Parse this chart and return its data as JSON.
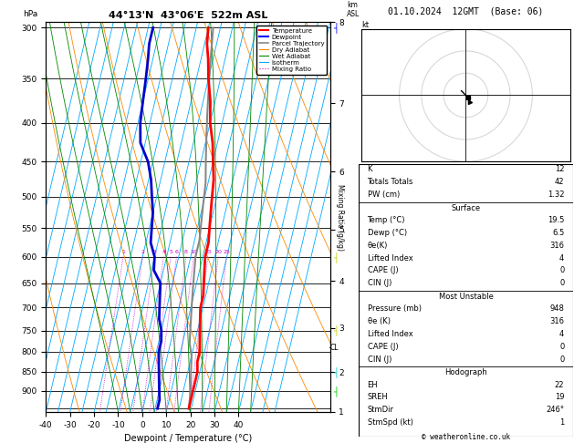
{
  "title_left": "44°13'N  43°06'E  522m ASL",
  "title_right": "01.10.2024  12GMT  (Base: 06)",
  "xlabel": "Dewpoint / Temperature (°C)",
  "ylabel_left": "hPa",
  "ylabel_right_km": "km\nASL",
  "ylabel_mixing": "Mixing Ratio (g/kg)",
  "pressure_ticks": [
    300,
    350,
    400,
    450,
    500,
    550,
    600,
    650,
    700,
    750,
    800,
    850,
    900
  ],
  "pressure_lines": [
    300,
    350,
    400,
    450,
    500,
    550,
    600,
    650,
    700,
    750,
    800,
    850,
    900,
    950
  ],
  "pmin": 295,
  "pmax": 960,
  "tmin": -40,
  "tmax": 40,
  "skew": 1.0,
  "km_ticks": [
    1,
    2,
    3,
    4,
    5,
    6,
    7,
    8
  ],
  "km_pressures": [
    976,
    845,
    720,
    608,
    505,
    410,
    320,
    239
  ],
  "cl_pressure": 790,
  "temp_profile": {
    "pressure": [
      300,
      315,
      330,
      350,
      375,
      400,
      425,
      450,
      475,
      500,
      525,
      550,
      575,
      600,
      625,
      650,
      675,
      700,
      725,
      750,
      775,
      800,
      825,
      850,
      875,
      900,
      925,
      950
    ],
    "temp": [
      -10,
      -9,
      -7,
      -5,
      -2,
      0,
      3,
      5,
      7,
      8,
      9,
      10,
      11,
      11,
      12,
      13,
      14,
      14,
      15,
      16,
      17,
      18,
      18,
      19,
      19,
      19,
      19,
      19
    ]
  },
  "dewp_profile": {
    "pressure": [
      300,
      315,
      330,
      350,
      375,
      400,
      425,
      450,
      475,
      500,
      525,
      550,
      575,
      600,
      625,
      650,
      675,
      700,
      725,
      750,
      775,
      800,
      825,
      850,
      875,
      900,
      925,
      950
    ],
    "temp": [
      -33,
      -33,
      -32,
      -31,
      -30,
      -29,
      -27,
      -22,
      -19,
      -17,
      -15,
      -14,
      -13,
      -10,
      -9,
      -5,
      -4,
      -3,
      -2,
      0,
      1,
      1,
      2,
      3,
      4,
      5,
      6,
      6
    ]
  },
  "parcel_profile": {
    "pressure": [
      950,
      900,
      870,
      840,
      810,
      780,
      750,
      720,
      690,
      660,
      630,
      600,
      570,
      540,
      510,
      480,
      450,
      420,
      390,
      360,
      330,
      300
    ],
    "temp": [
      19,
      18,
      17,
      16,
      15,
      13,
      12,
      11,
      10,
      9,
      8,
      7,
      7,
      6,
      5,
      4,
      2,
      0,
      -2,
      -4,
      -6,
      -8
    ]
  },
  "mr_values": [
    1,
    2,
    3,
    4,
    5,
    6,
    8,
    10,
    15,
    20,
    25
  ],
  "colors": {
    "temperature": "#ff0000",
    "dewpoint": "#0000cc",
    "parcel": "#888888",
    "dry_adiabat": "#ff8800",
    "wet_adiabat": "#008800",
    "isotherm": "#00aaff",
    "mixing_ratio": "#cc00cc",
    "grid": "#000000",
    "background": "#ffffff"
  },
  "stats_lines": [
    [
      "",
      "K",
      "12"
    ],
    [
      "",
      "Totals Totals",
      "42"
    ],
    [
      "",
      "PW (cm)",
      "1.32"
    ],
    [
      "hdr",
      "Surface",
      ""
    ],
    [
      "",
      "Temp (°C)",
      "19.5"
    ],
    [
      "",
      "Dewp (°C)",
      "6.5"
    ],
    [
      "",
      "θe(K)",
      "316"
    ],
    [
      "",
      "Lifted Index",
      "4"
    ],
    [
      "",
      "CAPE (J)",
      "0"
    ],
    [
      "",
      "CIN (J)",
      "0"
    ],
    [
      "hdr",
      "Most Unstable",
      ""
    ],
    [
      "",
      "Pressure (mb)",
      "948"
    ],
    [
      "",
      "θe (K)",
      "316"
    ],
    [
      "",
      "Lifted Index",
      "4"
    ],
    [
      "",
      "CAPE (J)",
      "0"
    ],
    [
      "",
      "CIN (J)",
      "0"
    ],
    [
      "hdr",
      "Hodograph",
      ""
    ],
    [
      "",
      "EH",
      "22"
    ],
    [
      "",
      "SREH",
      "19"
    ],
    [
      "",
      "StmDir",
      "246°"
    ],
    [
      "",
      "StmSpd (kt)",
      "1"
    ]
  ]
}
